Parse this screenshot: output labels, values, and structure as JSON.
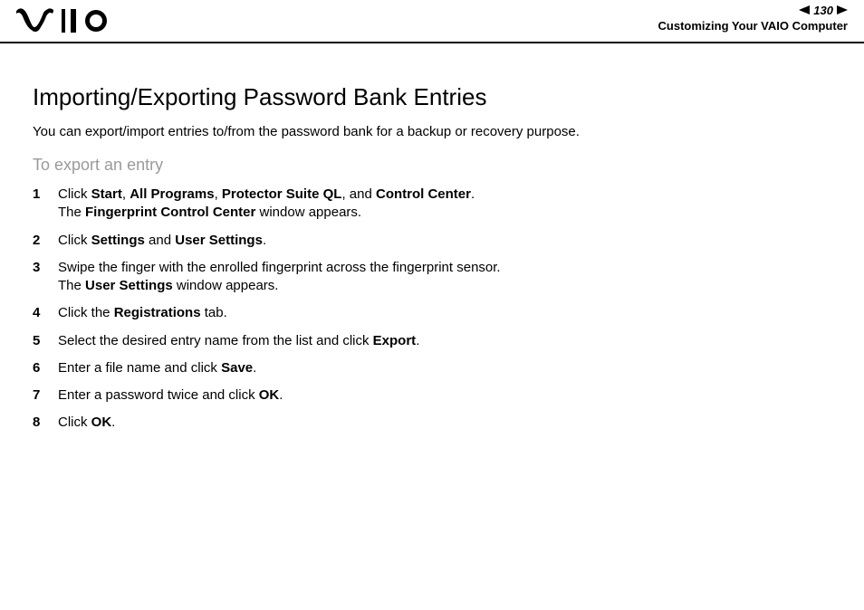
{
  "header": {
    "page_number": "130",
    "breadcrumb": "Customizing Your VAIO Computer"
  },
  "section_title": "Importing/Exporting Password Bank Entries",
  "intro": "You can export/import entries to/from the password bank for a backup or recovery purpose.",
  "subheading": "To export an entry",
  "steps": [
    {
      "num": "1",
      "segments": [
        {
          "t": "Click ",
          "b": false
        },
        {
          "t": "Start",
          "b": true
        },
        {
          "t": ", ",
          "b": false
        },
        {
          "t": "All Programs",
          "b": true
        },
        {
          "t": ", ",
          "b": false
        },
        {
          "t": "Protector Suite QL",
          "b": true
        },
        {
          "t": ", and ",
          "b": false
        },
        {
          "t": "Control Center",
          "b": true
        },
        {
          "t": ".",
          "b": false
        }
      ],
      "line2_segments": [
        {
          "t": "The ",
          "b": false
        },
        {
          "t": "Fingerprint Control Center",
          "b": true
        },
        {
          "t": " window appears.",
          "b": false
        }
      ]
    },
    {
      "num": "2",
      "segments": [
        {
          "t": "Click ",
          "b": false
        },
        {
          "t": "Settings",
          "b": true
        },
        {
          "t": " and ",
          "b": false
        },
        {
          "t": "User Settings",
          "b": true
        },
        {
          "t": ".",
          "b": false
        }
      ]
    },
    {
      "num": "3",
      "segments": [
        {
          "t": "Swipe the finger with the enrolled fingerprint across the fingerprint sensor.",
          "b": false
        }
      ],
      "line2_segments": [
        {
          "t": "The ",
          "b": false
        },
        {
          "t": "User Settings",
          "b": true
        },
        {
          "t": " window appears.",
          "b": false
        }
      ]
    },
    {
      "num": "4",
      "segments": [
        {
          "t": "Click the ",
          "b": false
        },
        {
          "t": "Registrations",
          "b": true
        },
        {
          "t": " tab.",
          "b": false
        }
      ]
    },
    {
      "num": "5",
      "segments": [
        {
          "t": "Select the desired entry name from the list and click ",
          "b": false
        },
        {
          "t": "Export",
          "b": true
        },
        {
          "t": ".",
          "b": false
        }
      ]
    },
    {
      "num": "6",
      "segments": [
        {
          "t": "Enter a file name and click ",
          "b": false
        },
        {
          "t": "Save",
          "b": true
        },
        {
          "t": ".",
          "b": false
        }
      ]
    },
    {
      "num": "7",
      "segments": [
        {
          "t": "Enter a password twice and click ",
          "b": false
        },
        {
          "t": "OK",
          "b": true
        },
        {
          "t": ".",
          "b": false
        }
      ]
    },
    {
      "num": "8",
      "segments": [
        {
          "t": "Click ",
          "b": false
        },
        {
          "t": "OK",
          "b": true
        },
        {
          "t": ".",
          "b": false
        }
      ]
    }
  ]
}
